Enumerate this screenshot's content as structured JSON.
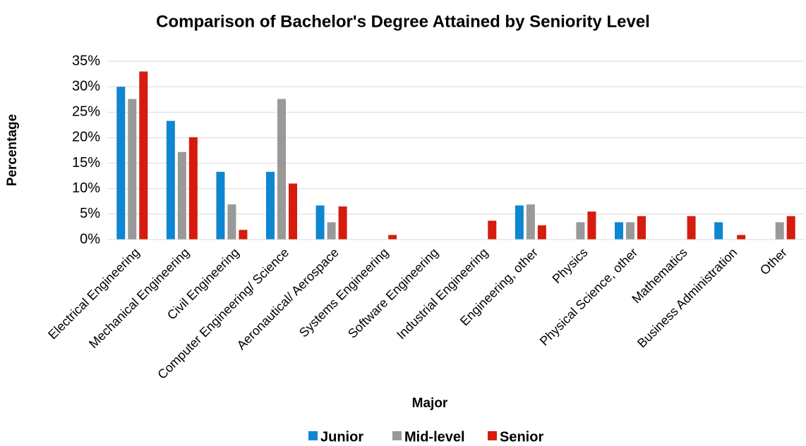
{
  "chart_data": {
    "type": "bar",
    "title": "Comparison of Bachelor's Degree Attained by Seniority Level",
    "x_label": "Major",
    "y_label": "Percentage",
    "categories": [
      "Electrical Engineering",
      "Mechanical Engineering",
      "Civil Engineering",
      "Computer Engineering/ Science",
      "Aeronautical/ Aerospace",
      "Systems Engineering",
      "Software Engineering",
      "Industrial Engineering",
      "Engineering, other",
      "Physics",
      "Physical Science, other",
      "Mathematics",
      "Business Administration",
      "Other"
    ],
    "series": [
      {
        "name": "Junior",
        "color": "#0f86d1",
        "values": [
          30,
          23.3,
          13.3,
          13.3,
          6.7,
          0,
          0,
          0,
          6.7,
          0,
          3.4,
          0,
          3.4,
          0
        ]
      },
      {
        "name": "Mid-level",
        "color": "#999999",
        "values": [
          27.6,
          17.2,
          6.9,
          27.6,
          3.4,
          0,
          0,
          0,
          6.9,
          3.4,
          3.4,
          0,
          0,
          3.4
        ]
      },
      {
        "name": "Senior",
        "color": "#d51c0e",
        "values": [
          33,
          20.1,
          1.9,
          11,
          6.5,
          0.9,
          0,
          3.7,
          2.8,
          5.5,
          4.6,
          4.6,
          0.9,
          4.6
        ]
      }
    ],
    "ylim": [
      0,
      35
    ],
    "yticks": [
      {
        "value": 0,
        "label": "0%"
      },
      {
        "value": 5,
        "label": "5%"
      },
      {
        "value": 10,
        "label": "10%"
      },
      {
        "value": 15,
        "label": "15%"
      },
      {
        "value": 20,
        "label": "20%"
      },
      {
        "value": 25,
        "label": "25%"
      },
      {
        "value": 30,
        "label": "30%"
      },
      {
        "value": 35,
        "label": "35%"
      }
    ],
    "grid": true,
    "legend": "bottom"
  }
}
